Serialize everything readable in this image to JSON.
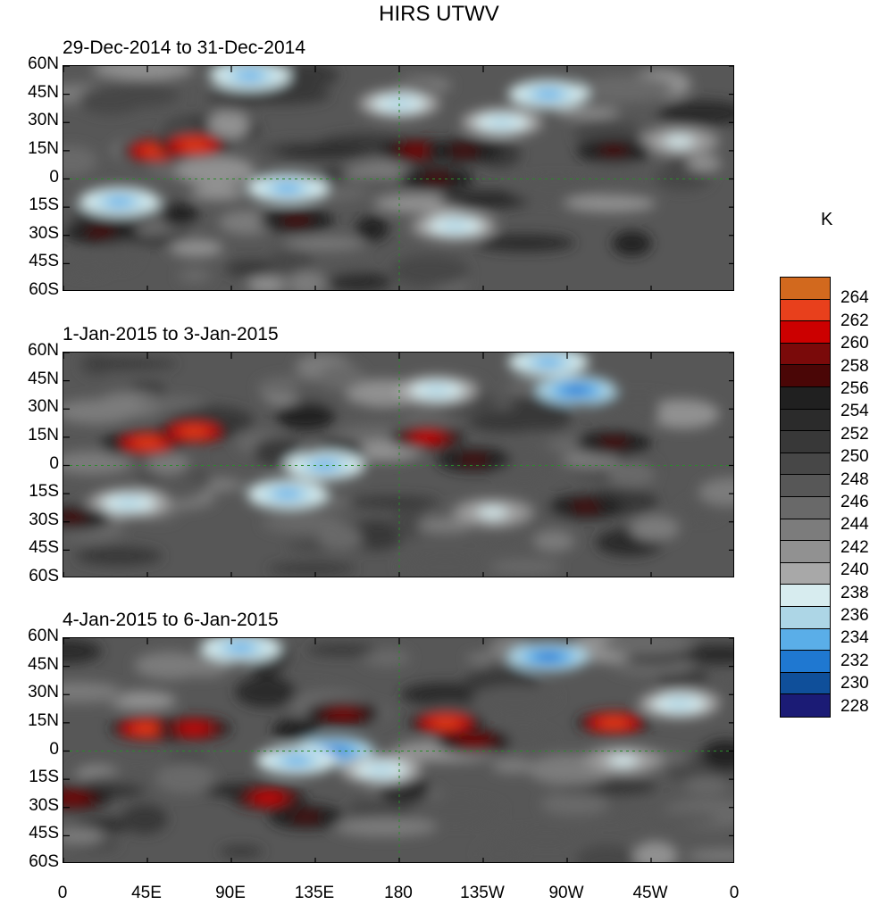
{
  "chart_data": {
    "type": "heatmap",
    "title": "HIRS UTWV",
    "panels": [
      {
        "subtitle": "29-Dec-2014 to 31-Dec-2014",
        "hotspots": [
          {
            "lon": 50,
            "lat": 15,
            "value": 262
          },
          {
            "lon": 70,
            "lat": 18,
            "value": 262
          },
          {
            "lon": 190,
            "lat": 15,
            "value": 258
          },
          {
            "lon": 215,
            "lat": 15,
            "value": 257
          },
          {
            "lon": 200,
            "lat": 0,
            "value": 256
          },
          {
            "lon": 295,
            "lat": 15,
            "value": 256
          },
          {
            "lon": 125,
            "lat": -22,
            "value": 257
          },
          {
            "lon": 20,
            "lat": -28,
            "value": 256
          }
        ],
        "coldspots": [
          {
            "lon": 260,
            "lat": 45,
            "value": 232
          },
          {
            "lon": 235,
            "lat": 30,
            "value": 234
          },
          {
            "lon": 120,
            "lat": -5,
            "value": 232
          },
          {
            "lon": 100,
            "lat": 55,
            "value": 232
          },
          {
            "lon": 180,
            "lat": 40,
            "value": 234
          },
          {
            "lon": 30,
            "lat": -12,
            "value": 232
          },
          {
            "lon": 210,
            "lat": -25,
            "value": 234
          },
          {
            "lon": 330,
            "lat": 20,
            "value": 236
          }
        ]
      },
      {
        "subtitle": "1-Jan-2015 to 3-Jan-2015",
        "hotspots": [
          {
            "lon": 45,
            "lat": 12,
            "value": 262
          },
          {
            "lon": 70,
            "lat": 18,
            "value": 262
          },
          {
            "lon": 195,
            "lat": 15,
            "value": 260
          },
          {
            "lon": 220,
            "lat": 3,
            "value": 256
          },
          {
            "lon": 295,
            "lat": 12,
            "value": 256
          },
          {
            "lon": 280,
            "lat": -22,
            "value": 256
          },
          {
            "lon": 5,
            "lat": -28,
            "value": 256
          }
        ],
        "coldspots": [
          {
            "lon": 275,
            "lat": 40,
            "value": 230
          },
          {
            "lon": 140,
            "lat": 0,
            "value": 232
          },
          {
            "lon": 120,
            "lat": -15,
            "value": 232
          },
          {
            "lon": 200,
            "lat": 40,
            "value": 234
          },
          {
            "lon": 260,
            "lat": 55,
            "value": 232
          },
          {
            "lon": 230,
            "lat": -25,
            "value": 236
          },
          {
            "lon": 35,
            "lat": -20,
            "value": 234
          }
        ]
      },
      {
        "subtitle": "4-Jan-2015 to 6-Jan-2015",
        "hotspots": [
          {
            "lon": 45,
            "lat": 12,
            "value": 262
          },
          {
            "lon": 70,
            "lat": 12,
            "value": 260
          },
          {
            "lon": 150,
            "lat": 20,
            "value": 258
          },
          {
            "lon": 205,
            "lat": 15,
            "value": 262
          },
          {
            "lon": 220,
            "lat": 5,
            "value": 258
          },
          {
            "lon": 295,
            "lat": 15,
            "value": 262
          },
          {
            "lon": 110,
            "lat": -25,
            "value": 260
          },
          {
            "lon": 5,
            "lat": -25,
            "value": 258
          },
          {
            "lon": 130,
            "lat": -35,
            "value": 256
          }
        ],
        "coldspots": [
          {
            "lon": 145,
            "lat": 0,
            "value": 230
          },
          {
            "lon": 125,
            "lat": -5,
            "value": 232
          },
          {
            "lon": 260,
            "lat": 50,
            "value": 230
          },
          {
            "lon": 95,
            "lat": 55,
            "value": 232
          },
          {
            "lon": 170,
            "lat": -10,
            "value": 234
          },
          {
            "lon": 300,
            "lat": -5,
            "value": 236
          },
          {
            "lon": 330,
            "lat": 25,
            "value": 234
          }
        ]
      }
    ],
    "ylabels": [
      "60N",
      "45N",
      "30N",
      "15N",
      "0",
      "15S",
      "30S",
      "45S",
      "60S"
    ],
    "xlabels": [
      "0",
      "45E",
      "90E",
      "135E",
      "180",
      "135W",
      "90W",
      "45W",
      "0"
    ],
    "lat_range": [
      -60,
      60
    ],
    "lon_range": [
      0,
      360
    ],
    "colorbar": {
      "unit": "K",
      "levels": [
        264,
        262,
        260,
        258,
        256,
        254,
        252,
        250,
        248,
        246,
        244,
        242,
        240,
        238,
        236,
        234,
        232,
        230,
        228
      ],
      "colors": [
        "#d2691e",
        "#e8401c",
        "#cc0000",
        "#7a0a0a",
        "#4a0606",
        "#202020",
        "#2b2b2b",
        "#383838",
        "#474747",
        "#575757",
        "#696969",
        "#7c7c7c",
        "#919191",
        "#a8a8a8",
        "#d7ecef",
        "#add6e6",
        "#5aaee8",
        "#1f78d1",
        "#0f4f9a",
        "#1b1b75"
      ]
    }
  }
}
